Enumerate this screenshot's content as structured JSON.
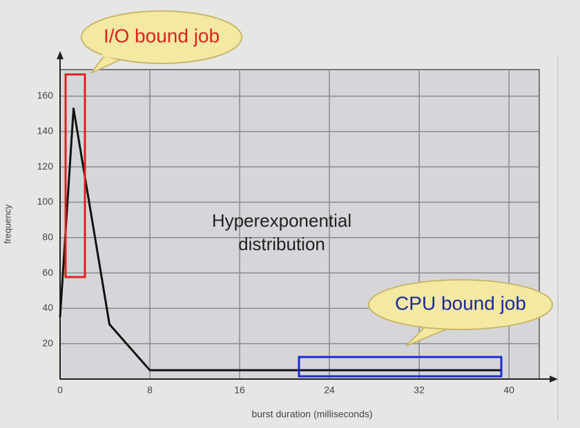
{
  "chart_data": {
    "type": "line",
    "x_label": "burst duration (milliseconds)",
    "y_label": "frequency",
    "x": [
      0,
      1.2,
      4.4,
      8,
      39.3
    ],
    "series": [
      {
        "color": "#111111",
        "values": [
          35,
          153,
          31,
          5,
          5
        ]
      }
    ],
    "xlim": [
      0,
      42.7
    ],
    "ylim": [
      0,
      175
    ],
    "xticks": [
      0,
      8,
      16,
      24,
      32,
      40
    ],
    "yticks": [
      20,
      40,
      60,
      80,
      100,
      120,
      140,
      160
    ],
    "grid": true,
    "annotations": {
      "io_bubble": "I/O bound job",
      "cpu_bubble": "CPU bound job",
      "center_line1": "Hyperexponential",
      "center_line2": "distribution"
    }
  }
}
